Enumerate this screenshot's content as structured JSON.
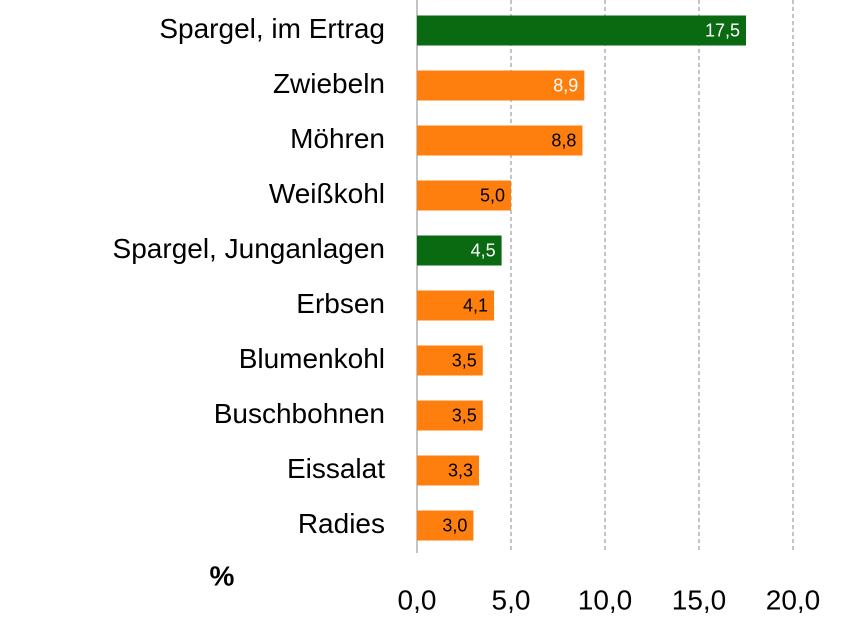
{
  "chart_data": {
    "type": "barh",
    "categories": [
      "Spargel, im Ertrag",
      "Zwiebeln",
      "Möhren",
      "Weißkohl",
      "Spargel, Junganlagen",
      "Erbsen",
      "Blumenkohl",
      "Buschbohnen",
      "Eissalat",
      "Radies"
    ],
    "values": [
      17.5,
      8.9,
      8.8,
      5.0,
      4.5,
      4.1,
      3.5,
      3.5,
      3.3,
      3.0
    ],
    "value_labels": [
      "17,5",
      "8,9",
      "8,8",
      "5,0",
      "4,5",
      "4,1",
      "3,5",
      "3,5",
      "3,3",
      "3,0"
    ],
    "colors": [
      "#0a6a12",
      "#ff7f0e",
      "#ff7f0e",
      "#ff7f0e",
      "#0a6a12",
      "#ff7f0e",
      "#ff7f0e",
      "#ff7f0e",
      "#ff7f0e",
      "#ff7f0e"
    ],
    "value_label_colors": [
      "#ffffff",
      "#ffffff",
      "#000000",
      "#000000",
      "#ffffff",
      "#000000",
      "#000000",
      "#000000",
      "#000000",
      "#000000"
    ],
    "xlabel": "%",
    "xlim": [
      0,
      20
    ],
    "xticks": [
      {
        "value": 0,
        "label": "0,0"
      },
      {
        "value": 5,
        "label": "5,0"
      },
      {
        "value": 10,
        "label": "10,0"
      },
      {
        "value": 15,
        "label": "15,0"
      },
      {
        "value": 20,
        "label": "20,0"
      }
    ],
    "grid": true
  }
}
